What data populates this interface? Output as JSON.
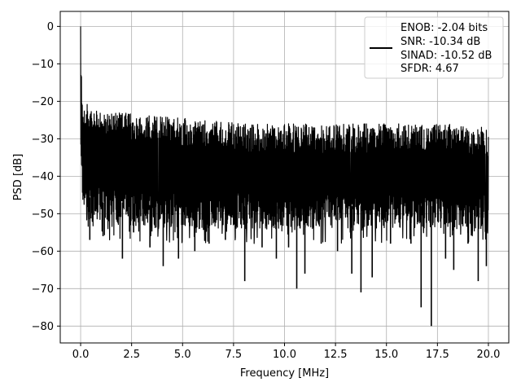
{
  "chart_data": {
    "type": "line",
    "xlabel": "Frequency [MHz]",
    "ylabel": "PSD [dB]",
    "xlim": [
      -1.0,
      21.0
    ],
    "ylim": [
      -84.5,
      4.0
    ],
    "xticks": [
      0.0,
      2.5,
      5.0,
      7.5,
      10.0,
      12.5,
      15.0,
      17.5,
      20.0
    ],
    "xtick_labels": [
      "0.0",
      "2.5",
      "5.0",
      "7.5",
      "10.0",
      "12.5",
      "15.0",
      "17.5",
      "20.0"
    ],
    "yticks": [
      0,
      -10,
      -20,
      -30,
      -40,
      -50,
      -60,
      -70,
      -80
    ],
    "ytick_labels": [
      "0",
      "−10",
      "−20",
      "−30",
      "−40",
      "−50",
      "−60",
      "−70",
      "−80"
    ],
    "grid": true,
    "legend_position": "top-right",
    "series": [
      {
        "color": "#000000",
        "legend_lines": [
          "ENOB: -2.04 bits",
          "SNR: -10.34 dB",
          "SINAD: -10.52 dB",
          "SFDR: 4.67"
        ],
        "description": "noisy PSD: peak 0 dB at ~0 MHz, rapid drop to about -22 dB, then band between about -27 dB and -55 dB with dips down to -80 dB",
        "envelope_x": [
          0.0,
          0.02,
          0.05,
          0.1,
          0.2,
          0.5,
          1.0,
          2.0,
          4.0,
          6.0,
          8.0,
          10.0,
          12.0,
          14.0,
          16.0,
          18.0,
          20.0
        ],
        "envelope_upper": [
          0.0,
          -8,
          -14,
          -18,
          -20,
          -22,
          -23,
          -23,
          -24,
          -25,
          -26,
          -26,
          -26,
          -26,
          -26,
          -26,
          -27
        ],
        "envelope_lower": [
          -36,
          -40,
          -44,
          -47,
          -50,
          -52,
          -53,
          -53,
          -54,
          -54,
          -54,
          -54,
          -54,
          -54,
          -54,
          -54,
          -54
        ],
        "deep_dips": [
          {
            "x": 0.45,
            "y": -57
          },
          {
            "x": 1.1,
            "y": -56
          },
          {
            "x": 2.05,
            "y": -62
          },
          {
            "x": 2.6,
            "y": -55
          },
          {
            "x": 3.4,
            "y": -59
          },
          {
            "x": 4.05,
            "y": -64
          },
          {
            "x": 4.8,
            "y": -62
          },
          {
            "x": 5.6,
            "y": -60
          },
          {
            "x": 6.3,
            "y": -58
          },
          {
            "x": 7.1,
            "y": -57
          },
          {
            "x": 8.05,
            "y": -68
          },
          {
            "x": 8.9,
            "y": -59
          },
          {
            "x": 9.6,
            "y": -62
          },
          {
            "x": 10.2,
            "y": -59
          },
          {
            "x": 10.6,
            "y": -70
          },
          {
            "x": 11.0,
            "y": -66
          },
          {
            "x": 11.8,
            "y": -58
          },
          {
            "x": 12.6,
            "y": -60
          },
          {
            "x": 13.3,
            "y": -66
          },
          {
            "x": 13.75,
            "y": -71
          },
          {
            "x": 14.3,
            "y": -67
          },
          {
            "x": 15.2,
            "y": -58
          },
          {
            "x": 16.2,
            "y": -58
          },
          {
            "x": 16.7,
            "y": -75
          },
          {
            "x": 17.2,
            "y": -80
          },
          {
            "x": 17.9,
            "y": -62
          },
          {
            "x": 18.3,
            "y": -65
          },
          {
            "x": 19.0,
            "y": -58
          },
          {
            "x": 19.5,
            "y": -68
          },
          {
            "x": 19.9,
            "y": -64
          }
        ]
      }
    ]
  }
}
